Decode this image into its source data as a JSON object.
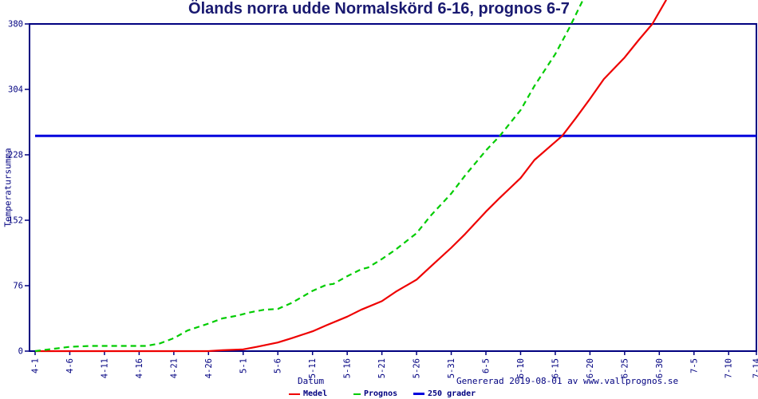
{
  "title": "Ölands norra udde Normalskörd 6-16, prognos 6-7",
  "axes": {
    "xlabel": "Datum",
    "ylabel": "Temperatursumma"
  },
  "footer": {
    "generated_text": "Genererad 2019-08-01 av www.vallprognos.se"
  },
  "legend": {
    "items": [
      {
        "label": "Medel",
        "color": "#ee0000",
        "style": "solid"
      },
      {
        "label": "Prognos",
        "color": "#00cc00",
        "style": "dashed"
      },
      {
        "label": "250 grader",
        "color": "#0000dd",
        "style": "solid"
      }
    ]
  },
  "colors": {
    "background": "#ffffff",
    "frame": "#000080",
    "text": "#000080",
    "title": "#191970",
    "medel": "#ee0000",
    "prognos": "#00cc00",
    "grader": "#0000dd"
  },
  "chart_data": {
    "type": "line",
    "title": "Ölands norra udde Normalskörd 6-16, prognos 6-7",
    "xlabel": "Datum",
    "ylabel": "Temperatursumma",
    "ylim": [
      0,
      380
    ],
    "y_ticks": [
      0,
      76,
      152,
      228,
      304,
      380
    ],
    "x_ticks": [
      "4-1",
      "4-6",
      "4-11",
      "4-16",
      "4-21",
      "4-26",
      "5-1",
      "5-6",
      "5-11",
      "5-16",
      "5-21",
      "5-26",
      "5-31",
      "6-5",
      "6-10",
      "6-15",
      "6-20",
      "6-25",
      "6-30",
      "7-5",
      "7-10",
      "7-14"
    ],
    "grid": false,
    "legend_position": "bottom",
    "annotations": {
      "reference_line_value": 250,
      "normal_harvest_date": "6-16",
      "prognosis_date": "6-7"
    },
    "series": [
      {
        "name": "Medel",
        "color": "#ee0000",
        "style": "solid",
        "points": [
          [
            "4-1",
            0
          ],
          [
            "4-6",
            0
          ],
          [
            "4-11",
            0
          ],
          [
            "4-16",
            0
          ],
          [
            "4-21",
            0
          ],
          [
            "4-26",
            0
          ],
          [
            "4-28",
            1
          ],
          [
            "5-1",
            2
          ],
          [
            "5-3",
            5
          ],
          [
            "5-6",
            10
          ],
          [
            "5-8",
            15
          ],
          [
            "5-11",
            23
          ],
          [
            "5-13",
            30
          ],
          [
            "5-16",
            40
          ],
          [
            "5-18",
            48
          ],
          [
            "5-21",
            58
          ],
          [
            "5-23",
            69
          ],
          [
            "5-26",
            83
          ],
          [
            "5-28",
            98
          ],
          [
            "5-31",
            120
          ],
          [
            "6-2",
            136
          ],
          [
            "6-5",
            162
          ],
          [
            "6-7",
            178
          ],
          [
            "6-10",
            201
          ],
          [
            "6-12",
            222
          ],
          [
            "6-15",
            243
          ],
          [
            "6-16",
            250
          ],
          [
            "6-18",
            271
          ],
          [
            "6-20",
            293
          ],
          [
            "6-22",
            316
          ],
          [
            "6-25",
            341
          ],
          [
            "6-27",
            361
          ],
          [
            "6-29",
            380
          ],
          [
            "7-1",
            408
          ]
        ]
      },
      {
        "name": "Prognos",
        "color": "#00cc00",
        "style": "dashed",
        "points": [
          [
            "4-1",
            0
          ],
          [
            "4-3",
            2
          ],
          [
            "4-6",
            5
          ],
          [
            "4-9",
            6
          ],
          [
            "4-12",
            6
          ],
          [
            "4-15",
            6
          ],
          [
            "4-17",
            6
          ],
          [
            "4-19",
            9
          ],
          [
            "4-21",
            15
          ],
          [
            "4-23",
            24
          ],
          [
            "4-26",
            32
          ],
          [
            "4-28",
            38
          ],
          [
            "4-30",
            41
          ],
          [
            "5-2",
            45
          ],
          [
            "5-4",
            48
          ],
          [
            "5-6",
            49
          ],
          [
            "5-8",
            56
          ],
          [
            "5-11",
            70
          ],
          [
            "5-13",
            77
          ],
          [
            "5-14",
            78
          ],
          [
            "5-16",
            87
          ],
          [
            "5-18",
            95
          ],
          [
            "5-19",
            97
          ],
          [
            "5-21",
            107
          ],
          [
            "5-23",
            118
          ],
          [
            "5-26",
            137
          ],
          [
            "5-28",
            157
          ],
          [
            "5-31",
            183
          ],
          [
            "6-2",
            204
          ],
          [
            "6-5",
            233
          ],
          [
            "6-7",
            250
          ],
          [
            "6-10",
            280
          ],
          [
            "6-12",
            308
          ],
          [
            "6-15",
            345
          ],
          [
            "6-17",
            375
          ],
          [
            "6-19",
            408
          ]
        ]
      },
      {
        "name": "250 grader",
        "color": "#0000dd",
        "style": "solid",
        "points": [
          [
            "4-1",
            250
          ],
          [
            "7-14",
            250
          ]
        ]
      }
    ]
  }
}
